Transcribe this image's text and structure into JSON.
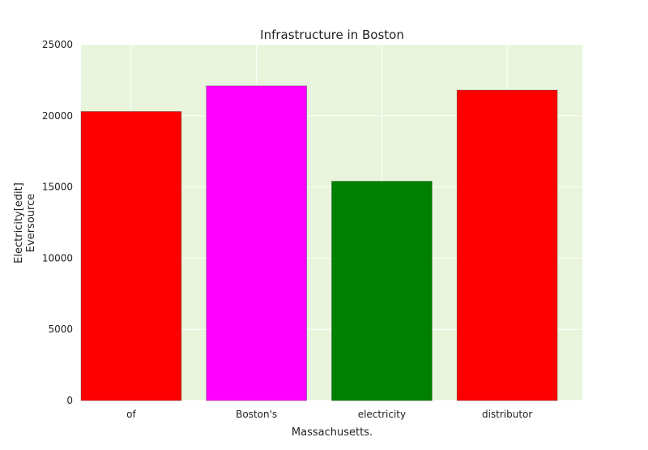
{
  "chart_data": {
    "type": "bar",
    "title": "Infrastructure in Boston",
    "xlabel": "Massachusetts.",
    "ylabel_lines": [
      "Electricity[edit]",
      "Eversource"
    ],
    "categories": [
      "of",
      "Boston's",
      "electricity",
      "distributor"
    ],
    "values": [
      20300,
      22100,
      15400,
      21800
    ],
    "bar_colors": [
      "#ff0000",
      "#ff00ff",
      "#008000",
      "#ff0000"
    ],
    "ylim": [
      0,
      25000
    ],
    "yticks": [
      0,
      5000,
      10000,
      15000,
      20000,
      25000
    ],
    "grid": true,
    "plot_background": "#e8f5dc",
    "grid_color": "#ffffff"
  }
}
